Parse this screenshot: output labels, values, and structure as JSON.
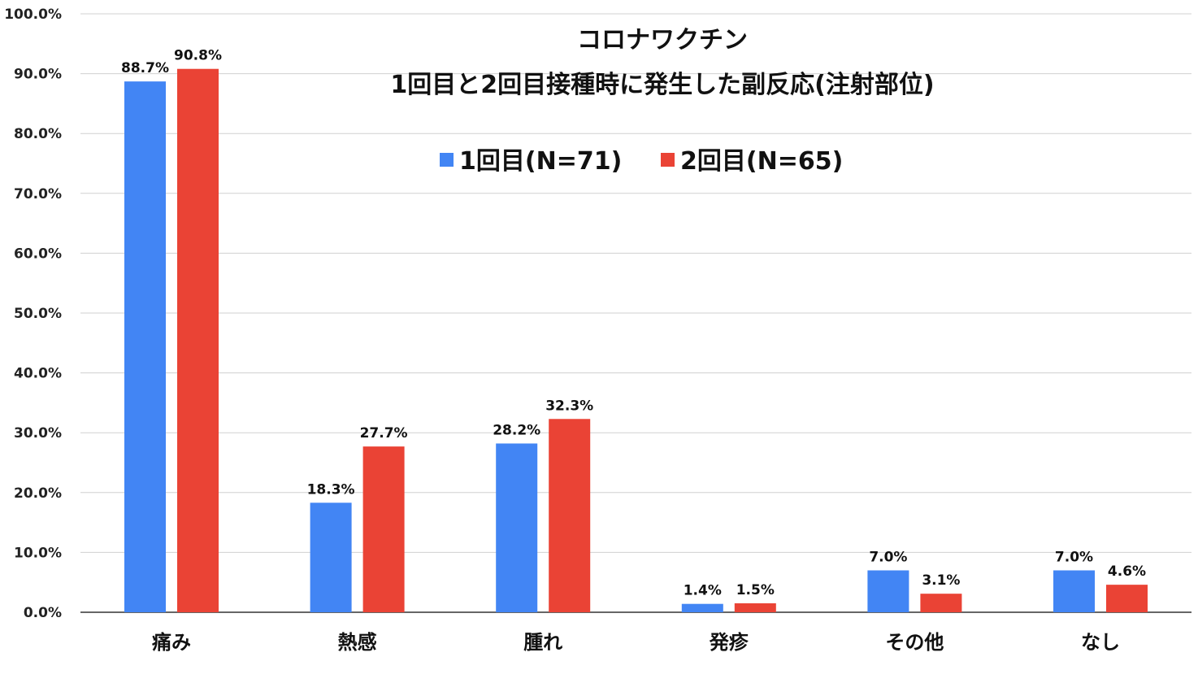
{
  "chart_data": {
    "type": "bar",
    "title_lines": [
      "コロナワクチン",
      "1回目と2回目接種時に発生した副反応(注射部位)"
    ],
    "categories": [
      "痛み",
      "熱感",
      "腫れ",
      "発疹",
      "その他",
      "なし"
    ],
    "series": [
      {
        "name": "1回目(N=71)",
        "color": "#4285f4",
        "values": [
          88.7,
          18.3,
          28.2,
          1.4,
          7.0,
          7.0
        ]
      },
      {
        "name": "2回目(N=65)",
        "color": "#ea4335",
        "values": [
          90.8,
          27.7,
          32.3,
          1.5,
          3.1,
          4.6
        ]
      }
    ],
    "ylim": [
      0,
      100
    ],
    "yticks": [
      0,
      10,
      20,
      30,
      40,
      50,
      60,
      70,
      80,
      90,
      100
    ],
    "ytick_format": "percent_1dp",
    "data_label_format": "percent_1dp",
    "grid": true,
    "legend_position": "top-center",
    "xlabel": "",
    "ylabel": ""
  }
}
